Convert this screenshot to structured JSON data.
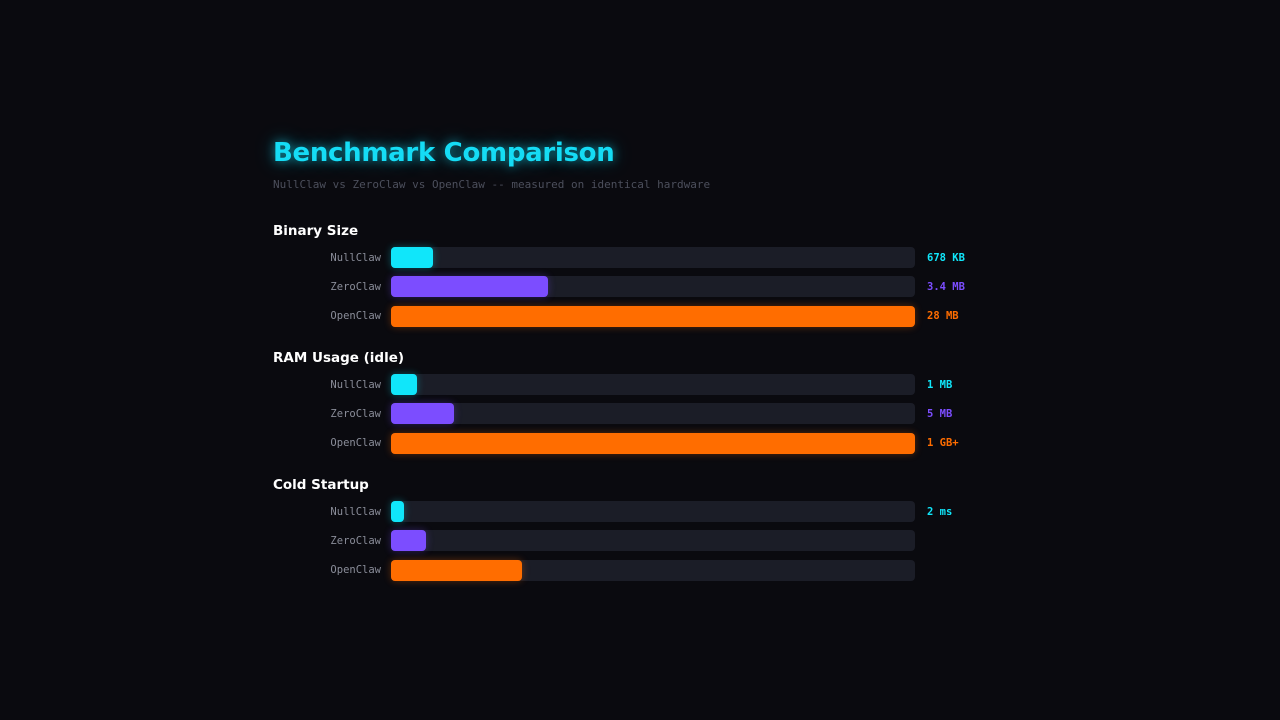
{
  "colors": {
    "background": "#0a0a0f",
    "title": "#15dcf5",
    "subtitle": "#4c4f5c",
    "label": "#8a8d99",
    "track": "#1b1d27",
    "series": {
      "NullClaw": "#10e6fa",
      "ZeroClaw": "#7c4dff",
      "OpenClaw": "#ff6d00"
    }
  },
  "chart_data": {
    "type": "bar",
    "orientation": "horizontal",
    "title": "Benchmark Comparison",
    "subtitle": "NullClaw vs ZeroClaw vs OpenClaw -- measured on identical hardware",
    "groups": [
      {
        "title": "Binary Size",
        "bars": [
          {
            "label": "NullClaw",
            "fraction": 0.08,
            "value_label": "678 KB"
          },
          {
            "label": "ZeroClaw",
            "fraction": 0.3,
            "value_label": "3.4 MB"
          },
          {
            "label": "OpenClaw",
            "fraction": 1.0,
            "value_label": "28 MB"
          }
        ]
      },
      {
        "title": "RAM Usage (idle)",
        "bars": [
          {
            "label": "NullClaw",
            "fraction": 0.05,
            "value_label": "1 MB"
          },
          {
            "label": "ZeroClaw",
            "fraction": 0.12,
            "value_label": "5 MB"
          },
          {
            "label": "OpenClaw",
            "fraction": 1.0,
            "value_label": "1 GB+"
          }
        ]
      },
      {
        "title": "Cold Startup",
        "bars": [
          {
            "label": "NullClaw",
            "fraction": 0.025,
            "value_label": "2 ms"
          },
          {
            "label": "ZeroClaw",
            "fraction": 0.067,
            "value_label": ""
          },
          {
            "label": "OpenClaw",
            "fraction": 0.25,
            "value_label": ""
          }
        ]
      }
    ]
  }
}
